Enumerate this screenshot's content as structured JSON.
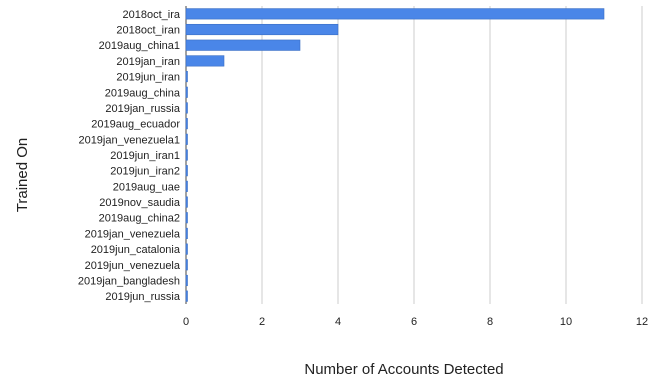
{
  "chart_data": {
    "type": "bar",
    "orientation": "horizontal",
    "title": "",
    "xlabel": "Number of Accounts Detected",
    "ylabel": "Trained On",
    "xlim": [
      0,
      12
    ],
    "xticks": [
      "0",
      "2",
      "4",
      "6",
      "8",
      "10",
      "12"
    ],
    "grid": true,
    "legend": "none",
    "bar_color": "#4a86e8",
    "grid_color": "#cccccc",
    "categories": [
      "2018oct_ira",
      "2018oct_iran",
      "2019aug_china1",
      "2019jan_iran",
      "2019jun_iran",
      "2019aug_china",
      "2019jan_russia",
      "2019aug_ecuador",
      "2019jan_venezuela1",
      "2019jun_iran1",
      "2019jun_iran2",
      "2019aug_uae",
      "2019nov_saudia",
      "2019aug_china2",
      "2019jan_venezuela",
      "2019jun_catalonia",
      "2019jun_venezuela",
      "2019jan_bangladesh",
      "2019jun_russia"
    ],
    "values": [
      11,
      4,
      3,
      1,
      0,
      0,
      0,
      0,
      0,
      0,
      0,
      0,
      0,
      0,
      0,
      0,
      0,
      0,
      0
    ]
  }
}
